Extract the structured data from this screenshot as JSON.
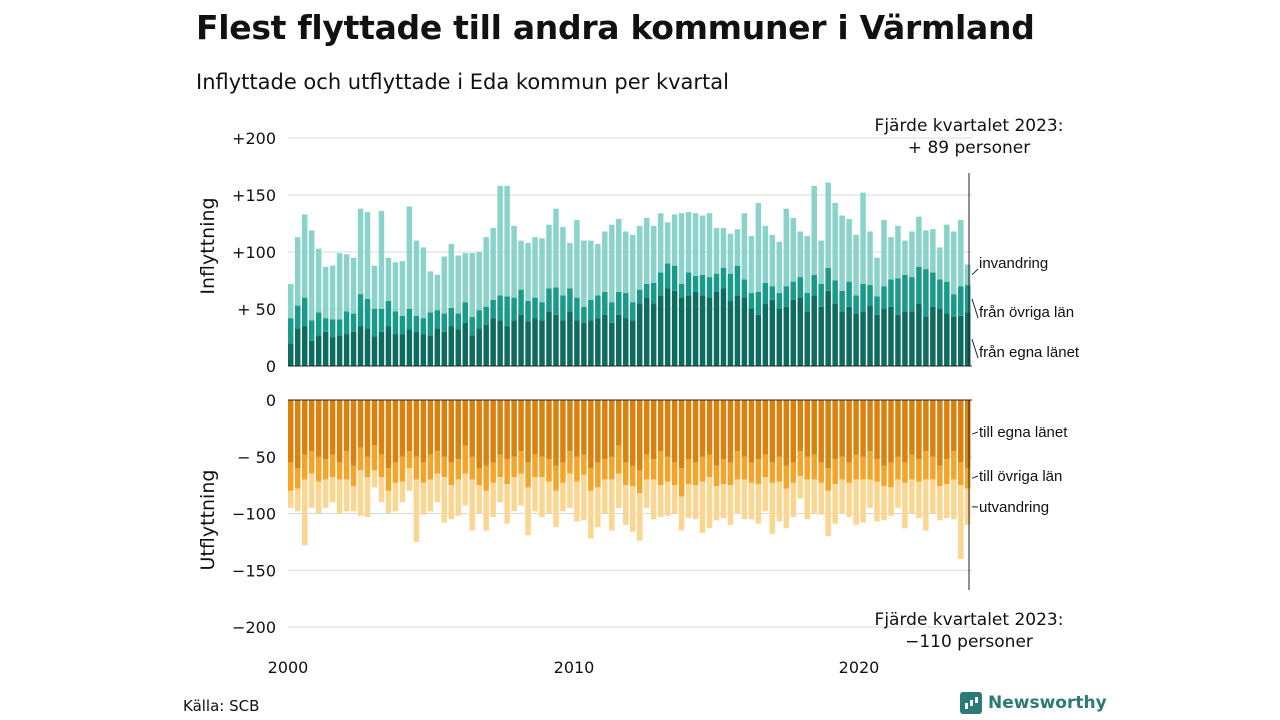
{
  "title": "Flest flyttade till andra kommuner i Värmland",
  "subtitle": "Inflyttade och utflyttade i Eda kommun per kvartal",
  "source": "Källa: SCB",
  "brand": "Newsworthy",
  "colors": {
    "in_egna": "#0e6b60",
    "in_ovriga": "#1a9a8a",
    "in_invandring": "#8ad3ca",
    "ut_egna": "#d9820f",
    "ut_ovriga": "#f3a42b",
    "ut_utvandring": "#fad690"
  },
  "chart_data": [
    {
      "type": "bar",
      "stacked": true,
      "ylabel": "Inflyttning",
      "ylim": [
        0,
        200
      ],
      "ytick_labels": [
        "0",
        "+ 50",
        "+100",
        "+150",
        "+200"
      ],
      "xtick_labels": [
        "2000",
        "2010",
        "2020"
      ],
      "x_start": "2000 Q1",
      "x_end": "2023 Q4",
      "annotation": [
        "Fjärde kvartalet 2023:",
        "+ 89 personer"
      ],
      "series": [
        {
          "name": "från egna länet",
          "values": [
            20,
            33,
            35,
            22,
            27,
            30,
            25,
            27,
            28,
            30,
            35,
            33,
            26,
            30,
            35,
            28,
            28,
            32,
            30,
            28,
            27,
            33,
            30,
            35,
            32,
            38,
            27,
            33,
            36,
            42,
            40,
            35,
            40,
            45,
            39,
            42,
            40,
            48,
            45,
            40,
            48,
            40,
            38,
            40,
            42,
            45,
            38,
            45,
            42,
            40,
            55,
            60,
            55,
            62,
            68,
            66,
            60,
            62,
            65,
            62,
            60,
            65,
            68,
            57,
            62,
            60,
            50,
            45,
            55,
            58,
            50,
            52,
            58,
            60,
            48,
            62,
            52,
            66,
            55,
            48,
            52,
            46,
            48,
            53,
            45,
            50,
            52,
            45,
            48,
            48,
            55,
            43,
            52,
            50,
            46,
            43,
            44,
            47
          ]
        },
        {
          "name": "från övriga län",
          "values": [
            22,
            20,
            25,
            18,
            20,
            12,
            16,
            14,
            20,
            16,
            28,
            26,
            24,
            20,
            22,
            20,
            16,
            18,
            14,
            14,
            20,
            16,
            16,
            16,
            14,
            18,
            16,
            16,
            16,
            16,
            22,
            26,
            20,
            22,
            18,
            18,
            16,
            20,
            24,
            22,
            20,
            20,
            14,
            18,
            20,
            20,
            18,
            20,
            22,
            16,
            12,
            12,
            18,
            20,
            22,
            22,
            12,
            20,
            14,
            18,
            18,
            16,
            18,
            24,
            26,
            16,
            14,
            20,
            18,
            12,
            14,
            18,
            16,
            18,
            16,
            18,
            20,
            20,
            20,
            18,
            22,
            16,
            24,
            18,
            16,
            20,
            24,
            32,
            32,
            30,
            32,
            42,
            30,
            26,
            28,
            20,
            26,
            24
          ]
        },
        {
          "name": "invandring",
          "values": [
            30,
            60,
            73,
            79,
            56,
            45,
            47,
            58,
            50,
            49,
            75,
            76,
            38,
            86,
            38,
            43,
            48,
            90,
            66,
            62,
            36,
            31,
            50,
            56,
            51,
            43,
            56,
            51,
            61,
            63,
            96,
            97,
            63,
            43,
            51,
            53,
            56,
            56,
            69,
            60,
            40,
            68,
            58,
            52,
            45,
            53,
            68,
            64,
            54,
            59,
            56,
            58,
            50,
            52,
            36,
            45,
            62,
            53,
            55,
            52,
            56,
            40,
            35,
            35,
            32,
            58,
            50,
            78,
            50,
            45,
            45,
            68,
            56,
            40,
            50,
            78,
            38,
            75,
            68,
            66,
            55,
            53,
            80,
            47,
            34,
            58,
            37,
            46,
            30,
            40,
            44,
            34,
            38,
            28,
            50,
            55,
            58,
            18
          ]
        }
      ]
    },
    {
      "type": "bar",
      "stacked": true,
      "ylabel": "Utflyttning",
      "ylim": [
        -200,
        0
      ],
      "ytick_labels": [
        "0",
        "− 50",
        "−100",
        "−150",
        "−200"
      ],
      "xtick_labels": [
        "2000",
        "2010",
        "2020"
      ],
      "x_start": "2000 Q1",
      "x_end": "2023 Q4",
      "annotation": [
        "Fjärde kvartalet 2023:",
        "−110 personer"
      ],
      "series": [
        {
          "name": "till egna länet",
          "values": [
            -55,
            -60,
            -48,
            -45,
            -50,
            -52,
            -48,
            -55,
            -45,
            -58,
            -42,
            -50,
            -40,
            -48,
            -60,
            -55,
            -50,
            -45,
            -50,
            -55,
            -48,
            -45,
            -50,
            -55,
            -52,
            -40,
            -50,
            -60,
            -58,
            -55,
            -48,
            -52,
            -50,
            -45,
            -55,
            -48,
            -50,
            -52,
            -58,
            -55,
            -45,
            -50,
            -48,
            -60,
            -55,
            -52,
            -50,
            -40,
            -55,
            -58,
            -62,
            -48,
            -52,
            -45,
            -50,
            -55,
            -60,
            -52,
            -55,
            -50,
            -48,
            -58,
            -52,
            -55,
            -45,
            -50,
            -55,
            -52,
            -48,
            -55,
            -50,
            -58,
            -55,
            -45,
            -50,
            -48,
            -55,
            -60,
            -52,
            -50,
            -55,
            -48,
            -50,
            -45,
            -52,
            -58,
            -55,
            -50,
            -55,
            -48,
            -52,
            -45,
            -50,
            -58,
            -52,
            -45,
            -55,
            -60
          ]
        },
        {
          "name": "till övriga län",
          "values": [
            -25,
            -18,
            -22,
            -20,
            -22,
            -18,
            -20,
            -15,
            -25,
            -18,
            -20,
            -18,
            -22,
            -20,
            -20,
            -18,
            -22,
            -15,
            -20,
            -18,
            -22,
            -20,
            -18,
            -20,
            -18,
            -25,
            -20,
            -15,
            -22,
            -18,
            -20,
            -22,
            -18,
            -20,
            -22,
            -20,
            -18,
            -20,
            -22,
            -18,
            -20,
            -22,
            -18,
            -20,
            -22,
            -18,
            -20,
            -25,
            -20,
            -18,
            -20,
            -22,
            -18,
            -30,
            -22,
            -20,
            -25,
            -22,
            -20,
            -22,
            -20,
            -18,
            -22,
            -20,
            -25,
            -20,
            -18,
            -22,
            -20,
            -18,
            -22,
            -20,
            -18,
            -22,
            -20,
            -22,
            -18,
            -20,
            -22,
            -20,
            -18,
            -22,
            -20,
            -25,
            -20,
            -18,
            -22,
            -20,
            -18,
            -22,
            -20,
            -25,
            -20,
            -18,
            -22,
            -25,
            -20,
            -18
          ]
        },
        {
          "name": "utvandring",
          "values": [
            -15,
            -20,
            -58,
            -30,
            -28,
            -25,
            -22,
            -30,
            -28,
            -22,
            -40,
            -35,
            -15,
            -22,
            -20,
            -25,
            -18,
            -20,
            -55,
            -28,
            -28,
            -25,
            -40,
            -30,
            -32,
            -28,
            -45,
            -25,
            -35,
            -30,
            -22,
            -35,
            -30,
            -28,
            -42,
            -30,
            -35,
            -28,
            -32,
            -25,
            -30,
            -35,
            -40,
            -42,
            -35,
            -30,
            -45,
            -30,
            -35,
            -40,
            -42,
            -25,
            -35,
            -28,
            -30,
            -25,
            -30,
            -30,
            -30,
            -45,
            -45,
            -30,
            -30,
            -35,
            -30,
            -35,
            -32,
            -35,
            -30,
            -45,
            -35,
            -35,
            -30,
            -20,
            -35,
            -30,
            -28,
            -40,
            -35,
            -30,
            -30,
            -40,
            -38,
            -25,
            -35,
            -30,
            -25,
            -25,
            -40,
            -30,
            -32,
            -45,
            -30,
            -30,
            -30,
            -35,
            -65,
            -32
          ]
        }
      ]
    }
  ]
}
